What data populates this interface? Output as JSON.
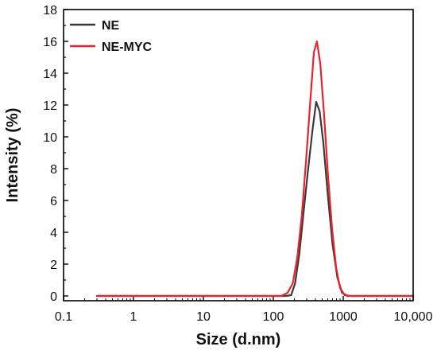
{
  "chart_data": {
    "type": "line",
    "title": "",
    "xlabel": "Size (d.nm)",
    "ylabel": "Intensity (%)",
    "x_scale": "log",
    "xlim": [
      0.1,
      10000
    ],
    "ylim": [
      -0.3,
      18
    ],
    "x_ticks": [
      0.1,
      1,
      10,
      100,
      1000,
      10000
    ],
    "x_tick_labels": [
      "0.1",
      "1",
      "10",
      "100",
      "1000",
      "10,000"
    ],
    "y_ticks": [
      0,
      2,
      4,
      6,
      8,
      10,
      12,
      14,
      16,
      18
    ],
    "y_tick_labels": [
      "0",
      "2",
      "4",
      "6",
      "8",
      "10",
      "12",
      "14",
      "16",
      "18"
    ],
    "legend_position": "top-left",
    "grid": false,
    "series": [
      {
        "name": "NE",
        "color": "#3a3a3a",
        "x": [
          0.3,
          100,
          150,
          180,
          205,
          235,
          270,
          315,
          365,
          410,
          460,
          520,
          600,
          700,
          820,
          960,
          1150,
          1400,
          10000
        ],
        "y": [
          0,
          0,
          0,
          0.05,
          0.8,
          2.6,
          5.2,
          8.0,
          10.5,
          12.2,
          11.6,
          9.6,
          6.4,
          3.3,
          1.2,
          0.2,
          0,
          0,
          0
        ]
      },
      {
        "name": "NE-MYC",
        "color": "#e8232a",
        "x": [
          0.3,
          100,
          130,
          160,
          190,
          220,
          255,
          295,
          340,
          380,
          420,
          470,
          530,
          600,
          690,
          790,
          900,
          1050,
          1300,
          10000
        ],
        "y": [
          0,
          0,
          0,
          0.2,
          0.8,
          2.4,
          5.0,
          8.6,
          12.4,
          15.3,
          16.0,
          14.6,
          11.5,
          7.8,
          4.3,
          1.8,
          0.5,
          0.05,
          0,
          0
        ]
      }
    ]
  }
}
